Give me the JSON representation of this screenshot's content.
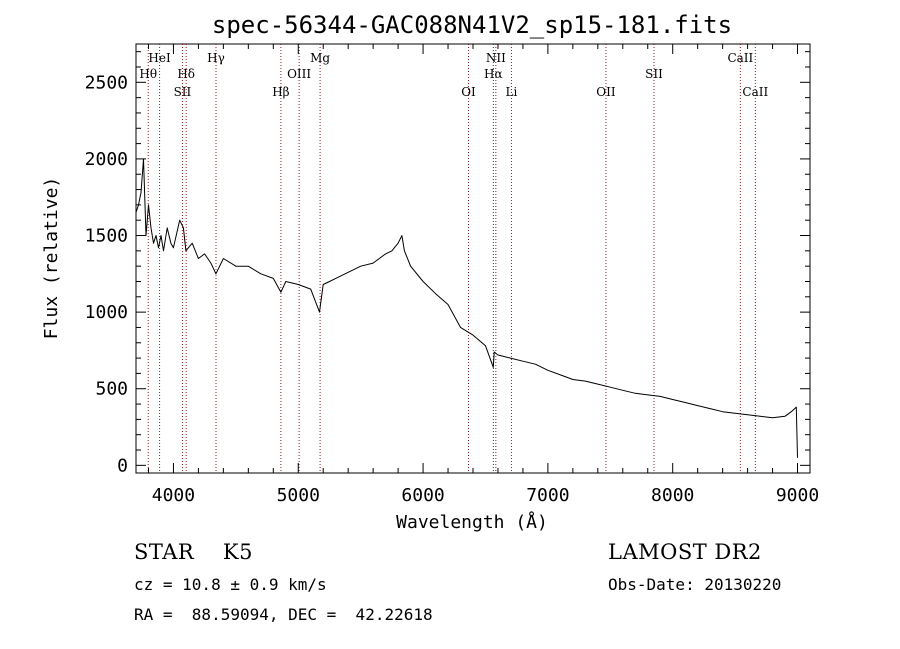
{
  "chart_data": {
    "type": "line",
    "title": "spec-56344-GAC088N41V2_sp15-181.fits",
    "xlabel": "Wavelength (Å)",
    "ylabel": "Flux (relative)",
    "xlim": [
      3700,
      9100
    ],
    "ylim": [
      -50,
      2750
    ],
    "x_ticks": [
      "4000",
      "5000",
      "6000",
      "7000",
      "8000",
      "9000"
    ],
    "y_ticks": [
      "0",
      "500",
      "1000",
      "1500",
      "2000",
      "2500"
    ],
    "series": [
      {
        "x": [
          3700,
          3720,
          3740,
          3760,
          3780,
          3800,
          3820,
          3840,
          3860,
          3880,
          3900,
          3920,
          3950,
          3980,
          4000,
          4050,
          4080,
          4100,
          4150,
          4200,
          4250,
          4300,
          4340,
          4400,
          4500,
          4600,
          4700,
          4800,
          4861,
          4900,
          5000,
          5100,
          5170,
          5200,
          5250,
          5300,
          5400,
          5500,
          5600,
          5700,
          5750,
          5800,
          5830,
          5850,
          5900,
          6000,
          6100,
          6200,
          6300,
          6400,
          6500,
          6563,
          6570,
          6600,
          6700,
          6800,
          6900,
          7000,
          7100,
          7200,
          7300,
          7400,
          7500,
          7600,
          7700,
          7800,
          7900,
          8000,
          8100,
          8200,
          8300,
          8400,
          8500,
          8600,
          8700,
          8800,
          8900,
          8950,
          8990,
          9000
        ],
        "y": [
          1650,
          1700,
          1780,
          2000,
          1500,
          1700,
          1550,
          1450,
          1500,
          1420,
          1500,
          1400,
          1550,
          1450,
          1420,
          1600,
          1550,
          1400,
          1450,
          1350,
          1380,
          1320,
          1250,
          1350,
          1300,
          1300,
          1250,
          1220,
          1130,
          1200,
          1180,
          1150,
          1000,
          1180,
          1200,
          1220,
          1260,
          1300,
          1320,
          1380,
          1400,
          1450,
          1500,
          1400,
          1300,
          1200,
          1120,
          1050,
          900,
          850,
          780,
          640,
          740,
          720,
          700,
          680,
          660,
          620,
          590,
          560,
          550,
          530,
          510,
          490,
          470,
          460,
          450,
          430,
          410,
          390,
          370,
          350,
          340,
          330,
          320,
          310,
          320,
          350,
          380,
          50
        ]
      }
    ],
    "lines": [
      {
        "label": "HeI",
        "x": 3889,
        "row": 1
      },
      {
        "label": "Hθ",
        "x": 3798,
        "row": 2
      },
      {
        "label": "Hδ",
        "x": 4102,
        "row": 2
      },
      {
        "label": "SII",
        "x": 4072,
        "row": 3
      },
      {
        "label": "Hγ",
        "x": 4341,
        "row": 1
      },
      {
        "label": "Mg",
        "x": 5175,
        "row": 1
      },
      {
        "label": "OIII",
        "x": 5007,
        "row": 2
      },
      {
        "label": "Hβ",
        "x": 4861,
        "row": 3
      },
      {
        "label": "NII",
        "x": 6583,
        "row": 1
      },
      {
        "label": "Hα",
        "x": 6563,
        "row": 2
      },
      {
        "label": "OI",
        "x": 6364,
        "row": 3
      },
      {
        "label": "Li",
        "x": 6708,
        "row": 3
      },
      {
        "label": "OII",
        "x": 7465,
        "row": 3
      },
      {
        "label": "SII",
        "x": 7850,
        "row": 2
      },
      {
        "label": "CaII",
        "x": 8542,
        "row": 1
      },
      {
        "label": "CaII",
        "x": 8662,
        "row": 3
      }
    ],
    "grid": false,
    "line_color": "#8b1a1a"
  },
  "info": {
    "class_line": "STAR    K5",
    "survey": "LAMOST DR2",
    "cz": "cz = 10.8 ± 0.9 km/s",
    "obs_date": "Obs-Date: 20130220",
    "radec": "RA =  88.59094, DEC =  42.22618"
  }
}
